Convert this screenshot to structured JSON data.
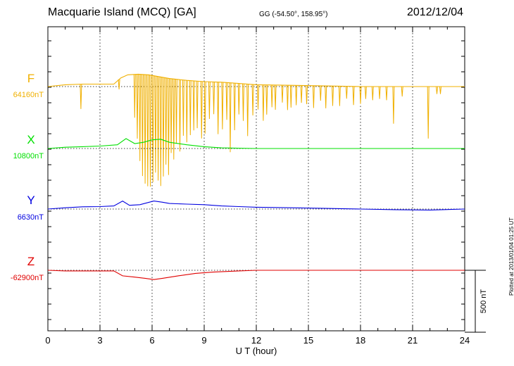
{
  "header": {
    "station": "Macquarie Island (MCQ)  [GA]",
    "coords": "GG (-54.50°, 158.95°)",
    "date": "2012/12/04"
  },
  "footer": {
    "plotted": "Plotted at 2013/01/04 01:25 UT"
  },
  "colors": {
    "F": "#f0b000",
    "X": "#00e000",
    "Y": "#0000e0",
    "Z": "#e00000"
  },
  "chart_data": {
    "type": "line",
    "xlabel": "U T (hour)",
    "xlim": [
      0,
      24
    ],
    "xticks": [
      0,
      3,
      6,
      9,
      12,
      15,
      18,
      21,
      24
    ],
    "scale_bar": "500 nT",
    "series": [
      {
        "name": "F",
        "baseline_label": "64160nT",
        "color": "#f0b000",
        "x": [
          0,
          1,
          2,
          3,
          3.8,
          4.2,
          4.6,
          5.2,
          5.8,
          6.4,
          7,
          8,
          9,
          10,
          11,
          12,
          14,
          16,
          18,
          20,
          22,
          24
        ],
        "y": [
          64160,
          64175,
          64180,
          64180,
          64180,
          64230,
          64255,
          64260,
          64255,
          64240,
          64225,
          64210,
          64200,
          64195,
          64185,
          64175,
          64170,
          64165,
          64160,
          64160,
          64160,
          64160
        ],
        "dips": [
          [
            1.9,
            -200
          ],
          [
            4.1,
            -80
          ],
          [
            5.0,
            -350
          ],
          [
            5.15,
            -520
          ],
          [
            5.3,
            -700
          ],
          [
            5.45,
            -820
          ],
          [
            5.6,
            -880
          ],
          [
            5.75,
            -900
          ],
          [
            5.9,
            -900
          ],
          [
            6.05,
            -860
          ],
          [
            6.2,
            -780
          ],
          [
            6.35,
            -840
          ],
          [
            6.5,
            -880
          ],
          [
            6.65,
            -800
          ],
          [
            6.8,
            -700
          ],
          [
            6.95,
            -780
          ],
          [
            7.1,
            -600
          ],
          [
            7.25,
            -650
          ],
          [
            7.4,
            -520
          ],
          [
            7.6,
            -580
          ],
          [
            7.8,
            -450
          ],
          [
            8.0,
            -500
          ],
          [
            8.2,
            -440
          ],
          [
            8.4,
            -400
          ],
          [
            8.6,
            -380
          ],
          [
            8.85,
            -460
          ],
          [
            9.05,
            -420
          ],
          [
            9.3,
            -300
          ],
          [
            9.55,
            -260
          ],
          [
            9.8,
            -420
          ],
          [
            10.05,
            -380
          ],
          [
            10.3,
            -300
          ],
          [
            10.5,
            -560
          ],
          [
            10.75,
            -380
          ],
          [
            11.0,
            -250
          ],
          [
            11.25,
            -300
          ],
          [
            11.5,
            -420
          ],
          [
            11.8,
            -250
          ],
          [
            12.1,
            -200
          ],
          [
            12.4,
            -290
          ],
          [
            12.6,
            -240
          ],
          [
            12.9,
            -180
          ],
          [
            13.1,
            -200
          ],
          [
            13.5,
            -140
          ],
          [
            13.8,
            -200
          ],
          [
            14.0,
            -180
          ],
          [
            14.3,
            -160
          ],
          [
            14.6,
            -140
          ],
          [
            14.9,
            -150
          ],
          [
            15.3,
            -180
          ],
          [
            15.7,
            -120
          ],
          [
            16.0,
            -180
          ],
          [
            16.4,
            -160
          ],
          [
            16.8,
            -160
          ],
          [
            17.2,
            -100
          ],
          [
            17.6,
            -150
          ],
          [
            18.0,
            -140
          ],
          [
            18.3,
            -100
          ],
          [
            18.7,
            -110
          ],
          [
            19.1,
            -100
          ],
          [
            19.5,
            -110
          ],
          [
            19.9,
            -300
          ],
          [
            20.4,
            -80
          ],
          [
            21.9,
            -420
          ],
          [
            22.4,
            -60
          ],
          [
            22.6,
            -60
          ]
        ]
      },
      {
        "name": "X",
        "baseline_label": "10800nT",
        "color": "#00e000",
        "x": [
          0,
          1,
          2,
          3,
          4,
          4.5,
          5,
          5.5,
          6,
          6.5,
          7,
          8,
          9,
          10,
          12,
          15,
          18,
          21,
          24
        ],
        "y": [
          10800,
          10810,
          10815,
          10820,
          10830,
          10880,
          10840,
          10850,
          10870,
          10875,
          10850,
          10830,
          10815,
          10805,
          10800,
          10800,
          10800,
          10800,
          10800
        ]
      },
      {
        "name": "Y",
        "baseline_label": "6630nT",
        "color": "#0000e0",
        "x": [
          0,
          1,
          2,
          3,
          3.8,
          4.3,
          4.7,
          5.3,
          6.1,
          6.6,
          7,
          8,
          9,
          10,
          11,
          12,
          14,
          16,
          18,
          20,
          22,
          24
        ],
        "y": [
          6630,
          6640,
          6648,
          6650,
          6655,
          6695,
          6660,
          6665,
          6695,
          6685,
          6675,
          6670,
          6665,
          6655,
          6650,
          6645,
          6640,
          6635,
          6630,
          6625,
          6622,
          6630
        ]
      },
      {
        "name": "Z",
        "baseline_label": "-62900nT",
        "color": "#e00000",
        "x": [
          0,
          1,
          2,
          3,
          3.8,
          4.3,
          5,
          5.6,
          6.1,
          6.6,
          7.5,
          8.5,
          9.5,
          11,
          12,
          15,
          18,
          21,
          24
        ],
        "y": [
          -62900,
          -62905,
          -62905,
          -62905,
          -62905,
          -62945,
          -62955,
          -62965,
          -62975,
          -62965,
          -62945,
          -62925,
          -62915,
          -62905,
          -62900,
          -62900,
          -62900,
          -62900,
          -62900
        ]
      }
    ]
  }
}
